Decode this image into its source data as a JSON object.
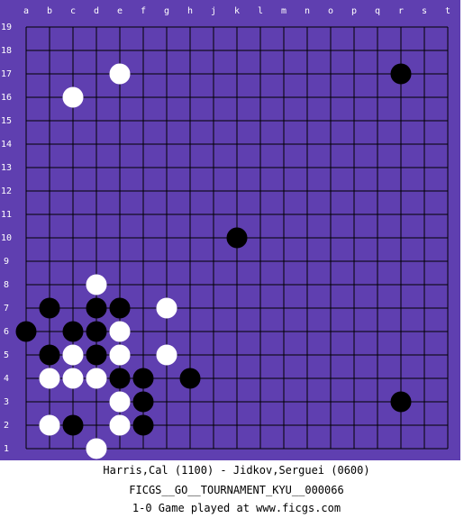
{
  "board": {
    "columns": [
      "a",
      "b",
      "c",
      "d",
      "e",
      "f",
      "g",
      "h",
      "j",
      "k",
      "l",
      "m",
      "n",
      "o",
      "p",
      "q",
      "r",
      "s",
      "t"
    ],
    "rows": [
      "19",
      "18",
      "17",
      "16",
      "15",
      "14",
      "13",
      "12",
      "11",
      "10",
      "9",
      "8",
      "7",
      "6",
      "5",
      "4",
      "3",
      "2",
      "1"
    ],
    "colors": {
      "background": "#5f3fb0",
      "grid": "#000000",
      "black_stone": "#000000",
      "white_stone": "#ffffff"
    },
    "stones": [
      {
        "col": "e",
        "row": "17",
        "color": "white"
      },
      {
        "col": "r",
        "row": "17",
        "color": "black"
      },
      {
        "col": "c",
        "row": "16",
        "color": "white"
      },
      {
        "col": "k",
        "row": "10",
        "color": "black"
      },
      {
        "col": "d",
        "row": "8",
        "color": "white"
      },
      {
        "col": "b",
        "row": "7",
        "color": "black"
      },
      {
        "col": "d",
        "row": "7",
        "color": "black"
      },
      {
        "col": "e",
        "row": "7",
        "color": "black"
      },
      {
        "col": "g",
        "row": "7",
        "color": "white"
      },
      {
        "col": "a",
        "row": "6",
        "color": "black"
      },
      {
        "col": "c",
        "row": "6",
        "color": "black"
      },
      {
        "col": "d",
        "row": "6",
        "color": "black"
      },
      {
        "col": "e",
        "row": "6",
        "color": "white"
      },
      {
        "col": "b",
        "row": "5",
        "color": "black"
      },
      {
        "col": "c",
        "row": "5",
        "color": "white"
      },
      {
        "col": "d",
        "row": "5",
        "color": "black"
      },
      {
        "col": "e",
        "row": "5",
        "color": "white"
      },
      {
        "col": "g",
        "row": "5",
        "color": "white"
      },
      {
        "col": "b",
        "row": "4",
        "color": "white"
      },
      {
        "col": "c",
        "row": "4",
        "color": "white"
      },
      {
        "col": "d",
        "row": "4",
        "color": "white"
      },
      {
        "col": "e",
        "row": "4",
        "color": "black"
      },
      {
        "col": "f",
        "row": "4",
        "color": "black"
      },
      {
        "col": "h",
        "row": "4",
        "color": "black"
      },
      {
        "col": "e",
        "row": "3",
        "color": "white"
      },
      {
        "col": "f",
        "row": "3",
        "color": "black"
      },
      {
        "col": "r",
        "row": "3",
        "color": "black"
      },
      {
        "col": "b",
        "row": "2",
        "color": "white"
      },
      {
        "col": "c",
        "row": "2",
        "color": "black"
      },
      {
        "col": "e",
        "row": "2",
        "color": "white"
      },
      {
        "col": "f",
        "row": "2",
        "color": "black"
      },
      {
        "col": "d",
        "row": "1",
        "color": "white"
      }
    ]
  },
  "info": {
    "players": "Harris,Cal (1100) - Jidkov,Serguei (0600)",
    "event": "FICGS__GO__TOURNAMENT_KYU__000066",
    "result": "1-0   Game played at www.ficgs.com"
  }
}
